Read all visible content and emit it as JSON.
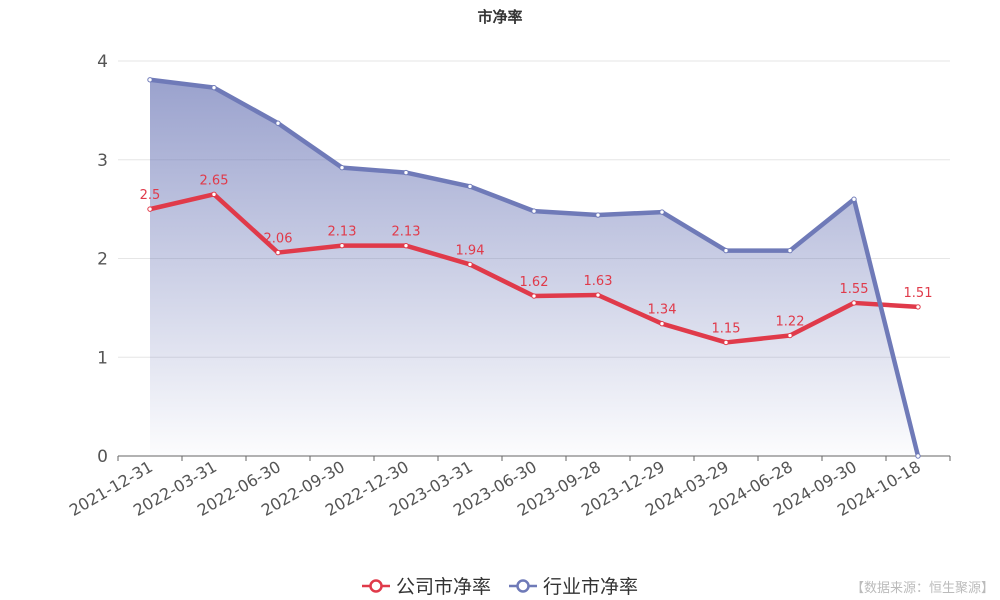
{
  "chart_data": {
    "type": "line",
    "title": "市净率",
    "categories": [
      "2021-12-31",
      "2022-03-31",
      "2022-06-30",
      "2022-09-30",
      "2022-12-30",
      "2023-03-31",
      "2023-06-30",
      "2023-09-28",
      "2023-12-29",
      "2024-03-29",
      "2024-06-28",
      "2024-09-30",
      "2024-10-18"
    ],
    "series": [
      {
        "name": "公司市净率",
        "color": "#e03a4a",
        "values": [
          2.5,
          2.65,
          2.06,
          2.13,
          2.13,
          1.94,
          1.62,
          1.63,
          1.34,
          1.15,
          1.22,
          1.55,
          1.51
        ],
        "data_labels": true
      },
      {
        "name": "行业市净率",
        "color": "#6f7ab8",
        "values": [
          3.81,
          3.73,
          3.37,
          2.92,
          2.87,
          2.73,
          2.48,
          2.44,
          2.47,
          2.08,
          2.08,
          2.6,
          0
        ],
        "area": true
      }
    ],
    "y_ticks": [
      0,
      1,
      2,
      3,
      4
    ],
    "ylim": [
      0,
      4
    ],
    "grid": true,
    "legend_position": "bottom"
  },
  "legend": {
    "items": [
      "公司市净率",
      "行业市净率"
    ]
  },
  "source_note": "【数据来源：恒生聚源】"
}
